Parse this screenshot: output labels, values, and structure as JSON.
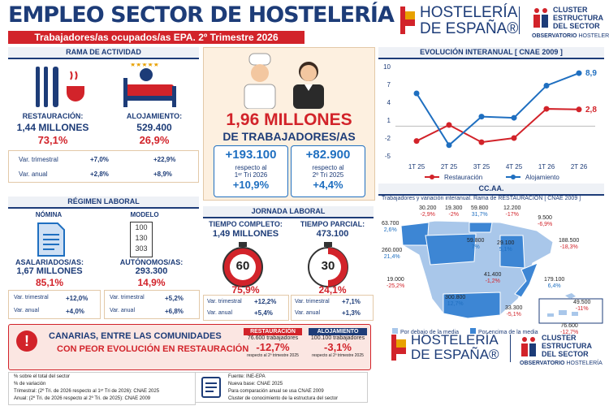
{
  "header": {
    "title": "EMPLEO SECTOR DE HOSTELERÍA",
    "subtitle": "Trabajadores/as ocupados/as EPA. 2º Trimestre 2026"
  },
  "logos": {
    "hosteleria": [
      "HOSTELERÍA",
      "DE ESPAÑA®"
    ],
    "cluster": [
      "CLUSTER",
      "ESTRUCTURA",
      "DEL SECTOR"
    ],
    "observatorio": [
      "OBSERVATORIO",
      "HOSTELERÍA"
    ]
  },
  "rama": {
    "title": "RAMA DE ACTIVIDAD",
    "restauracion": {
      "label": "RESTAURACIÓN:",
      "value": "1,44 MILLONES",
      "pct": "73,1%"
    },
    "alojamiento": {
      "label": "ALOJAMIENTO:",
      "value": "529.400",
      "pct": "26,9%"
    },
    "rows": [
      [
        "Var. trimestral",
        "+7,0%",
        "+22,9%"
      ],
      [
        "Var. anual",
        "+2,8%",
        "+8,9%"
      ]
    ]
  },
  "total": {
    "value": "1,96 MILLONES",
    "label": "DE TRABAJADORES/AS",
    "boxes": [
      {
        "value": "+193.100",
        "text": "respecto al",
        "ref": "1ᵉʳ Tri 2026",
        "pct": "+10,9%"
      },
      {
        "value": "+82.900",
        "text": "respecto al",
        "ref": "2º Tri 2025",
        "pct": "+4,4%"
      }
    ]
  },
  "regimen": {
    "title": "RÉGIMEN LABORAL",
    "nomina": {
      "head": "NÓMINA",
      "label": "ASALARIADOS/AS:",
      "value": "1,67 MILLONES",
      "pct": "85,1%",
      "rows": [
        [
          "Var. trimestral",
          "+12,0%"
        ],
        [
          "Var. anual",
          "+4,0%"
        ]
      ]
    },
    "modelo": {
      "head": "MODELO",
      "icon": [
        "100",
        "130",
        "303"
      ],
      "label": "AUTÓNOMOS/AS:",
      "value": "293.300",
      "pct": "14,9%",
      "rows": [
        [
          "Var. trimestral",
          "+5,2%"
        ],
        [
          "Var. anual",
          "+6,8%"
        ]
      ]
    }
  },
  "jornada": {
    "title": "JORNADA LABORAL",
    "completo": {
      "label": "TIEMPO COMPLETO:",
      "value": "1,49 MILLONES",
      "dial": "60",
      "pct": "75,9%",
      "rows": [
        [
          "Var. trimestral",
          "+12,2%"
        ],
        [
          "Var. anual",
          "+5,4%"
        ]
      ]
    },
    "parcial": {
      "label": "TIEMPO PARCIAL:",
      "value": "473.100",
      "dial": "30",
      "pct": "24,1%",
      "rows": [
        [
          "Var. trimestral",
          "+7,1%"
        ],
        [
          "Var. anual",
          "+1,3%"
        ]
      ]
    }
  },
  "chart_data": {
    "type": "line",
    "title": "EVOLUCIÓN INTERANUAL [ CNAE 2009 ]",
    "categories": [
      "1T 25",
      "2T 25",
      "3T 25",
      "4T 25",
      "1T 26",
      "2T 26"
    ],
    "series": [
      {
        "name": "Restauración",
        "color": "#d2232a",
        "values": [
          -2.5,
          0.2,
          -2.7,
          -2.0,
          2.9,
          2.8
        ],
        "value_labels": [
          null,
          null,
          null,
          null,
          null,
          "2,8"
        ]
      },
      {
        "name": "Alojamiento",
        "color": "#1f6fc0",
        "values": [
          5.5,
          -3.2,
          1.6,
          1.4,
          6.8,
          8.9
        ],
        "value_labels": [
          null,
          null,
          null,
          null,
          null,
          "8,9"
        ]
      }
    ],
    "ylim": [
      -5,
      10
    ],
    "yticks": [
      10,
      7,
      4,
      1,
      -2,
      -5
    ],
    "grid": false,
    "legend": "bottom"
  },
  "ccaa": {
    "title": "CC.AA.",
    "subtitle": "Trabajadores y variación interanual. Rama de RESTAURACIÓN [ CNAE 2009 ]",
    "regions": [
      {
        "workers": "63.700",
        "change": "2,6%"
      },
      {
        "workers": "30.200",
        "change": "-2,9%"
      },
      {
        "workers": "19.300",
        "change": "-2%"
      },
      {
        "workers": "59.800",
        "change": "31,7%"
      },
      {
        "workers": "12.200",
        "change": "-17%"
      },
      {
        "workers": "9.500",
        "change": "-6,9%"
      },
      {
        "workers": "188.500",
        "change": "-18,3%"
      },
      {
        "workers": "260.000",
        "change": "21,4%"
      },
      {
        "workers": "59.800",
        "change": "7%"
      },
      {
        "workers": "29.100",
        "change": "5,1%"
      },
      {
        "workers": "19.000",
        "change": "-25,2%"
      },
      {
        "workers": "41.400",
        "change": "-1,2%"
      },
      {
        "workers": "179.100",
        "change": "6,4%"
      },
      {
        "workers": "300.800",
        "change": "12,7%"
      },
      {
        "workers": "33.300",
        "change": "-5,1%"
      },
      {
        "workers": "49.500",
        "change": "-11%"
      },
      {
        "workers": "76.600",
        "change": "-12,7%"
      }
    ],
    "legend": [
      "Por debajo de la media",
      "Por encima de la media"
    ]
  },
  "banner": {
    "lines": [
      "CANARIAS, ENTRE LAS COMUNIDADES",
      "CON PEOR EVOLUCIÓN EN RESTAURACIÓN"
    ],
    "boxes": [
      {
        "head": "RESTAURACIÓN",
        "workers": "76.600 trabajadores",
        "pct": "-12,7%",
        "note": "respecto al 2º trimestre 2025"
      },
      {
        "head": "ALOJAMIENTO",
        "workers": "100.100 trabajadores",
        "pct": "-3,1%",
        "note": "respecto al 2º trimestre 2025"
      }
    ]
  },
  "footnotes": {
    "left": [
      "% sobre el total del sector",
      "% de variación",
      "Trimestral: (2º Tri. de 2026 respecto al 1ᵉʳ Tri de 2026): CNAE 2025",
      "Anual: (2º Tri. de 2026 respecto al 2º Tri. de 2025): CNAE 2009"
    ],
    "right": [
      "Fuente: INE-EPA",
      "Nueva base: CNAE 2025",
      "Para comparación anual se usa CNAE 2009",
      "Cluster de conocimiento de la estructura del sector"
    ]
  }
}
